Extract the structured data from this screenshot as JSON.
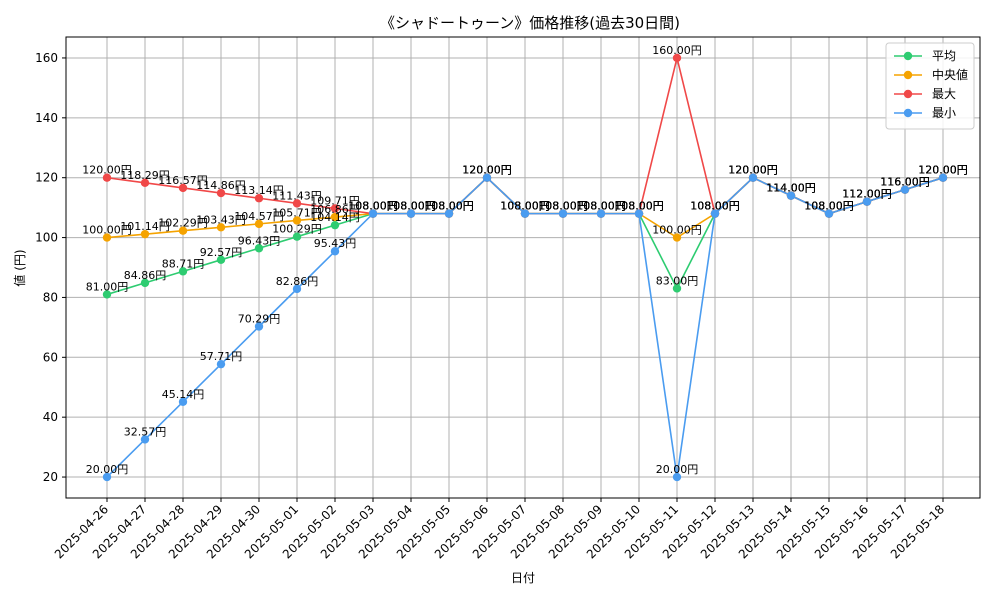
{
  "chart_data": {
    "type": "line",
    "title": "《シャドートゥーン》価格推移(過去30日間)",
    "xlabel": "日付",
    "ylabel": "値 (円)",
    "ylim": [
      13,
      167
    ],
    "yticks": [
      20,
      40,
      60,
      80,
      100,
      120,
      140,
      160
    ],
    "grid": true,
    "legend_position": "top-right",
    "value_suffix": "円",
    "categories": [
      "2025-04-26",
      "2025-04-27",
      "2025-04-28",
      "2025-04-29",
      "2025-04-30",
      "2025-05-01",
      "2025-05-02",
      "2025-05-03",
      "2025-05-04",
      "2025-05-05",
      "2025-05-06",
      "2025-05-07",
      "2025-05-08",
      "2025-05-09",
      "2025-05-10",
      "2025-05-11",
      "2025-05-12",
      "2025-05-13",
      "2025-05-14",
      "2025-05-15",
      "2025-05-16",
      "2025-05-17",
      "2025-05-18"
    ],
    "series": [
      {
        "name": "平均",
        "color": "#2ecc71",
        "values": [
          81.0,
          84.86,
          88.71,
          92.57,
          96.43,
          100.29,
          104.14,
          108.0,
          108.0,
          108.0,
          120.0,
          108.0,
          108.0,
          108.0,
          108.0,
          83.0,
          108.0,
          120.0,
          114.0,
          108.0,
          112.0,
          116.0,
          120.0
        ]
      },
      {
        "name": "中央値",
        "color": "#f5a300",
        "values": [
          100.0,
          101.14,
          102.29,
          103.43,
          104.57,
          105.71,
          106.86,
          108.0,
          108.0,
          108.0,
          120.0,
          108.0,
          108.0,
          108.0,
          108.0,
          100.0,
          108.0,
          120.0,
          114.0,
          108.0,
          112.0,
          116.0,
          120.0
        ]
      },
      {
        "name": "最大",
        "color": "#f04848",
        "values": [
          120.0,
          118.29,
          116.57,
          114.86,
          113.14,
          111.43,
          109.71,
          108.0,
          108.0,
          108.0,
          120.0,
          108.0,
          108.0,
          108.0,
          108.0,
          160.0,
          108.0,
          120.0,
          114.0,
          108.0,
          112.0,
          116.0,
          120.0
        ]
      },
      {
        "name": "最小",
        "color": "#4a9cf0",
        "values": [
          20.0,
          32.57,
          45.14,
          57.71,
          70.29,
          82.86,
          95.43,
          108.0,
          108.0,
          108.0,
          120.0,
          108.0,
          108.0,
          108.0,
          108.0,
          20.0,
          108.0,
          120.0,
          114.0,
          108.0,
          112.0,
          116.0,
          120.0
        ]
      }
    ]
  }
}
